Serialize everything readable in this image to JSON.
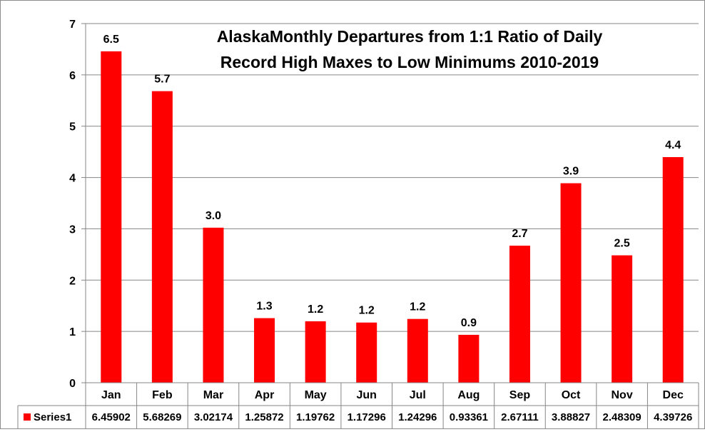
{
  "chart_data": {
    "type": "bar",
    "title_lines": [
      "AlaskaMonthly Departures from 1:1 Ratio of Daily",
      "Record High Maxes to Low Minimums 2010-2019"
    ],
    "categories": [
      "Jan",
      "Feb",
      "Mar",
      "Apr",
      "May",
      "Jun",
      "Jul",
      "Aug",
      "Sep",
      "Oct",
      "Nov",
      "Dec"
    ],
    "series": [
      {
        "name": "Series1",
        "color": "#ff0000",
        "values": [
          6.45902,
          5.68269,
          3.02174,
          1.25872,
          1.19762,
          1.17296,
          1.24296,
          0.93361,
          2.67111,
          3.88827,
          2.48309,
          4.39726
        ],
        "data_labels": [
          "6.5",
          "5.7",
          "3.0",
          "1.3",
          "1.2",
          "1.2",
          "1.2",
          "0.9",
          "2.7",
          "3.9",
          "2.5",
          "4.4"
        ],
        "table_values": [
          "6.45902",
          "5.68269",
          "3.02174",
          "1.25872",
          "1.19762",
          "1.17296",
          "1.24296",
          "0.93361",
          "2.67111",
          "3.88827",
          "2.48309",
          "4.39726"
        ]
      }
    ],
    "ylim": [
      0,
      7
    ],
    "yticks": [
      "0",
      "1",
      "2",
      "3",
      "4",
      "5",
      "6",
      "7"
    ],
    "xlabel": "",
    "ylabel": "",
    "grid": true,
    "data_table": true,
    "legend": "data-table",
    "colors": {
      "bar": "#ff0000",
      "grid": "#868686",
      "axis": "#868686"
    }
  }
}
